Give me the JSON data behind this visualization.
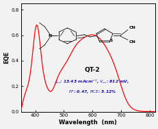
{
  "title": "QT-2",
  "xlabel": "Wavelength  (nm)",
  "ylabel": "EQE",
  "xlim": [
    350,
    820
  ],
  "ylim": [
    0.0,
    0.85
  ],
  "yticks": [
    0.0,
    0.2,
    0.4,
    0.6,
    0.8
  ],
  "xticks": [
    400,
    500,
    600,
    700,
    800
  ],
  "line_color": "#ff0000",
  "annotation_color": "#1a0dab",
  "background_color": "#f2f2f2",
  "title_color": "#000000"
}
